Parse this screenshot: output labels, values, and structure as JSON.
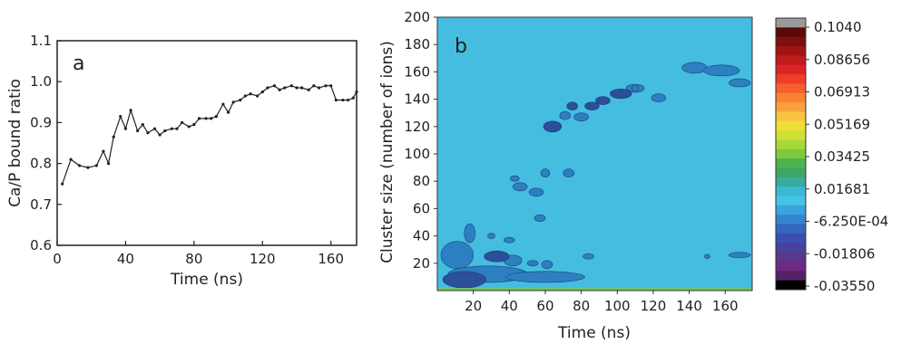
{
  "chart_data": [
    {
      "type": "line",
      "panel_label": "a",
      "xlabel": "Time (ns)",
      "ylabel": "Ca/P bound ratio",
      "xlim": [
        0,
        175
      ],
      "ylim": [
        0.6,
        1.1
      ],
      "x_ticks": [
        "0",
        "40",
        "80",
        "120",
        "160"
      ],
      "y_ticks": [
        "0.6",
        "0.7",
        "0.8",
        "0.9",
        "1.0",
        "1.1"
      ],
      "grid": false,
      "series": [
        {
          "x": [
            3,
            8,
            13,
            18,
            23,
            27,
            30,
            33,
            37,
            40,
            43,
            47,
            50,
            53,
            57,
            60,
            63,
            67,
            70,
            73,
            77,
            80,
            83,
            87,
            90,
            93,
            97,
            100,
            103,
            107,
            110,
            113,
            117,
            120,
            123,
            127,
            130,
            133,
            137,
            140,
            143,
            147,
            150,
            153,
            157,
            160,
            163,
            167,
            170,
            173,
            175
          ],
          "y": [
            0.75,
            0.81,
            0.795,
            0.79,
            0.795,
            0.83,
            0.8,
            0.865,
            0.915,
            0.885,
            0.93,
            0.88,
            0.895,
            0.875,
            0.885,
            0.87,
            0.88,
            0.885,
            0.885,
            0.9,
            0.89,
            0.895,
            0.91,
            0.91,
            0.91,
            0.915,
            0.945,
            0.925,
            0.95,
            0.955,
            0.965,
            0.97,
            0.965,
            0.975,
            0.985,
            0.99,
            0.98,
            0.985,
            0.99,
            0.985,
            0.985,
            0.98,
            0.99,
            0.985,
            0.99,
            0.99,
            0.955,
            0.955,
            0.955,
            0.96,
            0.975
          ]
        }
      ]
    },
    {
      "type": "heatmap",
      "panel_label": "b",
      "xlabel": "Time (ns)",
      "ylabel": "Cluster size (number of ions)",
      "xlim": [
        0,
        175
      ],
      "ylim": [
        0,
        200
      ],
      "x_ticks": [
        "20",
        "40",
        "60",
        "80",
        "100",
        "120",
        "140",
        "160"
      ],
      "y_ticks": [
        "20",
        "40",
        "60",
        "80",
        "100",
        "120",
        "140",
        "160",
        "180",
        "200"
      ],
      "colorbar": {
        "ticks": [
          "0.1040",
          "0.08656",
          "0.06913",
          "0.05169",
          "0.03425",
          "0.01681",
          "-6.250E-04",
          "-0.01806",
          "-0.03550"
        ],
        "colors": [
          "#9a9a9a",
          "#5a0a0a",
          "#7e0f0f",
          "#a01414",
          "#c11a1a",
          "#dd2424",
          "#ef3d2a",
          "#f5602e",
          "#f88134",
          "#f9a23c",
          "#f8c340",
          "#f0dd35",
          "#cfe033",
          "#a8d835",
          "#7cc93d",
          "#4db34a",
          "#3aa864",
          "#3aa9a0",
          "#3ab9d3",
          "#45c3e8",
          "#3ba3dd",
          "#3584cf",
          "#3366bf",
          "#3b4fae",
          "#47419f",
          "#5a368f",
          "#6e2a82",
          "#572066",
          "#000000"
        ]
      },
      "background_color": "#45bde0",
      "cluster_color": "#2c80c2",
      "dense_cluster_color": "#2b4f9a",
      "blobs": [
        {
          "x": 15,
          "y": 8,
          "rx": 12,
          "ry": 6,
          "level": "dense"
        },
        {
          "x": 33,
          "y": 25,
          "rx": 7,
          "ry": 4,
          "level": "dense"
        },
        {
          "x": 64,
          "y": 120,
          "rx": 5,
          "ry": 4,
          "level": "dense"
        },
        {
          "x": 102,
          "y": 144,
          "rx": 6,
          "ry": 3.5,
          "level": "dense"
        },
        {
          "x": 86,
          "y": 135,
          "rx": 4,
          "ry": 3,
          "level": "dense"
        },
        {
          "x": 92,
          "y": 139,
          "rx": 4,
          "ry": 3,
          "level": "dense"
        },
        {
          "x": 75,
          "y": 135,
          "rx": 3,
          "ry": 3,
          "level": "dense"
        },
        {
          "x": 80,
          "y": 127,
          "rx": 4,
          "ry": 3,
          "level": "mid"
        },
        {
          "x": 110,
          "y": 148,
          "rx": 5,
          "ry": 3,
          "level": "mid"
        },
        {
          "x": 123,
          "y": 141,
          "rx": 4,
          "ry": 3,
          "level": "mid"
        },
        {
          "x": 143,
          "y": 163,
          "rx": 7,
          "ry": 4,
          "level": "mid"
        },
        {
          "x": 158,
          "y": 161,
          "rx": 10,
          "ry": 4,
          "level": "mid"
        },
        {
          "x": 168,
          "y": 152,
          "rx": 6,
          "ry": 3,
          "level": "mid"
        },
        {
          "x": 71,
          "y": 128,
          "rx": 3,
          "ry": 3,
          "level": "mid"
        },
        {
          "x": 73,
          "y": 86,
          "rx": 3,
          "ry": 3,
          "level": "mid"
        },
        {
          "x": 60,
          "y": 86,
          "rx": 2.5,
          "ry": 3,
          "level": "mid"
        },
        {
          "x": 46,
          "y": 76,
          "rx": 4,
          "ry": 3,
          "level": "mid"
        },
        {
          "x": 55,
          "y": 72,
          "rx": 4,
          "ry": 3,
          "level": "mid"
        },
        {
          "x": 43,
          "y": 82,
          "rx": 2.5,
          "ry": 2,
          "level": "mid"
        },
        {
          "x": 57,
          "y": 53,
          "rx": 3,
          "ry": 2.5,
          "level": "mid"
        },
        {
          "x": 18,
          "y": 42,
          "rx": 3,
          "ry": 7,
          "level": "mid"
        },
        {
          "x": 11,
          "y": 26,
          "rx": 9,
          "ry": 10,
          "level": "mid"
        },
        {
          "x": 28,
          "y": 12,
          "rx": 22,
          "ry": 6,
          "level": "mid"
        },
        {
          "x": 60,
          "y": 10,
          "rx": 22,
          "ry": 4,
          "level": "mid"
        },
        {
          "x": 42,
          "y": 22,
          "rx": 5,
          "ry": 4,
          "level": "mid"
        },
        {
          "x": 61,
          "y": 19,
          "rx": 3,
          "ry": 3,
          "level": "mid"
        },
        {
          "x": 40,
          "y": 37,
          "rx": 3,
          "ry": 2,
          "level": "mid"
        },
        {
          "x": 84,
          "y": 25,
          "rx": 3,
          "ry": 2,
          "level": "mid"
        },
        {
          "x": 168,
          "y": 26,
          "rx": 6,
          "ry": 2,
          "level": "mid"
        },
        {
          "x": 150,
          "y": 25,
          "rx": 1.5,
          "ry": 1.5,
          "level": "mid"
        },
        {
          "x": 53,
          "y": 20,
          "rx": 3,
          "ry": 2,
          "level": "mid"
        },
        {
          "x": 30,
          "y": 40,
          "rx": 2,
          "ry": 2,
          "level": "mid"
        },
        {
          "x": 110,
          "y": 148,
          "rx": 2,
          "ry": 2,
          "level": "mid"
        }
      ]
    }
  ]
}
